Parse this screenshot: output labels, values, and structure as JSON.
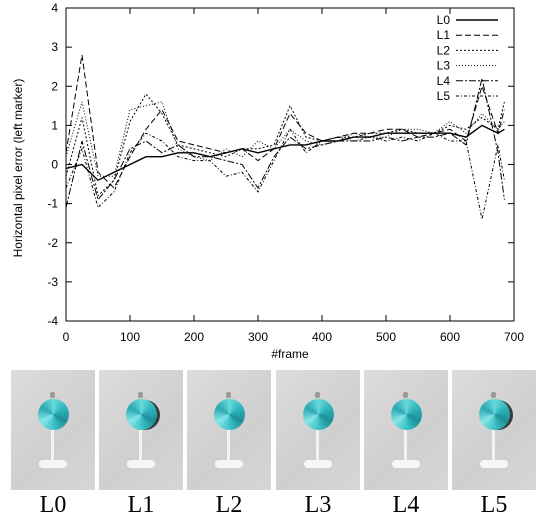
{
  "colors": {
    "line": "#000000",
    "ball": "#34b9c0",
    "background": "#d4d4d4"
  },
  "chart_data": {
    "type": "line",
    "title": "",
    "xlabel": "#frame",
    "ylabel": "Horizontal pixel error (left marker)",
    "xlim": [
      0,
      700
    ],
    "ylim": [
      -4,
      4
    ],
    "xticks": [
      "0",
      "100",
      "200",
      "300",
      "400",
      "500",
      "600",
      "700"
    ],
    "yticks": [
      "-4",
      "-3",
      "-2",
      "-1",
      "0",
      "1",
      "2",
      "3",
      "4"
    ],
    "grid": false,
    "legend_position": "top-right",
    "x": [
      0,
      25,
      50,
      75,
      100,
      125,
      150,
      175,
      200,
      225,
      250,
      275,
      300,
      325,
      350,
      375,
      400,
      425,
      450,
      475,
      500,
      525,
      550,
      575,
      600,
      625,
      650,
      675,
      685
    ],
    "series": [
      {
        "name": "L0",
        "dash": "",
        "values": [
          -0.1,
          0.0,
          -0.4,
          -0.2,
          0.0,
          0.2,
          0.2,
          0.3,
          0.3,
          0.2,
          0.3,
          0.4,
          0.3,
          0.4,
          0.5,
          0.5,
          0.6,
          0.6,
          0.7,
          0.7,
          0.8,
          0.8,
          0.8,
          0.8,
          0.8,
          0.7,
          1.0,
          0.8,
          0.9
        ]
      },
      {
        "name": "L1",
        "dash": "6,3",
        "values": [
          0.3,
          2.8,
          -0.2,
          -0.6,
          0.2,
          0.9,
          1.4,
          0.6,
          0.5,
          0.4,
          0.3,
          0.4,
          0.1,
          0.4,
          1.3,
          0.8,
          0.6,
          0.7,
          0.8,
          0.8,
          0.9,
          0.9,
          0.7,
          0.8,
          0.9,
          0.6,
          2.0,
          0.8,
          1.4
        ]
      },
      {
        "name": "L2",
        "dash": "2,2",
        "values": [
          -0.3,
          1.2,
          -0.8,
          -0.4,
          1.1,
          1.8,
          1.3,
          0.5,
          0.4,
          0.3,
          0.2,
          0.4,
          0.4,
          0.5,
          1.5,
          0.7,
          0.6,
          0.7,
          0.7,
          0.8,
          0.8,
          0.9,
          0.8,
          0.8,
          1.0,
          0.9,
          1.2,
          0.9,
          1.6
        ]
      },
      {
        "name": "L3",
        "dash": "1,2",
        "values": [
          0.2,
          1.6,
          -0.3,
          -0.3,
          1.4,
          1.5,
          1.6,
          0.4,
          0.2,
          0.1,
          0.4,
          0.2,
          0.6,
          0.4,
          0.9,
          0.6,
          0.5,
          0.6,
          0.8,
          0.7,
          0.7,
          0.9,
          0.9,
          0.8,
          1.1,
          0.8,
          1.3,
          0.9,
          1.1
        ]
      },
      {
        "name": "L4",
        "dash": "7,2,2,2",
        "values": [
          -1.1,
          0.6,
          -0.9,
          -0.4,
          0.4,
          0.6,
          0.3,
          0.5,
          0.2,
          0.2,
          0.1,
          0.0,
          -0.6,
          0.2,
          0.7,
          0.4,
          0.5,
          0.6,
          0.6,
          0.6,
          0.7,
          0.6,
          0.7,
          0.7,
          0.8,
          0.5,
          2.2,
          0.3,
          -0.9
        ]
      },
      {
        "name": "L5",
        "dash": "3,2,1,2",
        "values": [
          -0.6,
          0.4,
          -1.1,
          -0.7,
          0.3,
          0.8,
          0.6,
          0.2,
          0.1,
          0.1,
          -0.3,
          -0.2,
          -0.7,
          0.1,
          0.9,
          0.3,
          0.6,
          0.7,
          0.6,
          0.7,
          0.6,
          0.7,
          0.6,
          0.8,
          0.6,
          0.6,
          -1.4,
          0.5,
          -0.4
        ]
      }
    ]
  },
  "thumbnails": [
    {
      "label": "L0"
    },
    {
      "label": "L1"
    },
    {
      "label": "L2"
    },
    {
      "label": "L3"
    },
    {
      "label": "L4"
    },
    {
      "label": "L5"
    }
  ]
}
